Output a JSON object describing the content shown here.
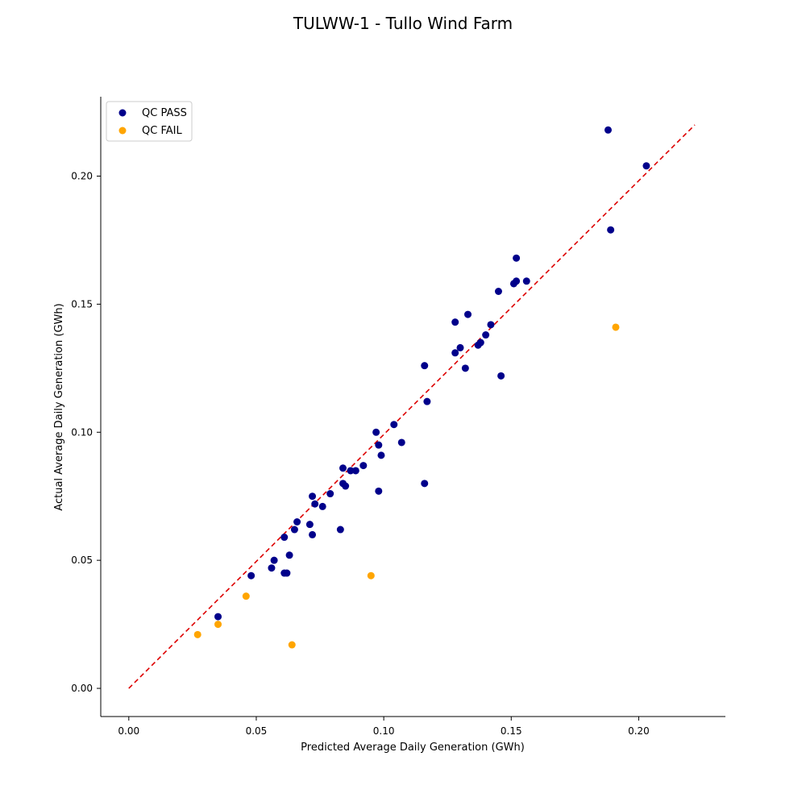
{
  "chart_data": {
    "type": "scatter",
    "title": "TULWW-1 - Tullo Wind Farm",
    "xlabel": "Predicted Average Daily Generation (GWh)",
    "ylabel": "Actual Average Daily Generation (GWh)",
    "xlim": [
      -0.011,
      0.234
    ],
    "ylim": [
      -0.011,
      0.231
    ],
    "xticks": [
      "0.00",
      "0.05",
      "0.10",
      "0.15",
      "0.20"
    ],
    "yticks": [
      "0.00",
      "0.05",
      "0.10",
      "0.15",
      "0.20"
    ],
    "grid": false,
    "legend_position": "top-left",
    "reference_line": {
      "x": [
        0.0,
        0.222
      ],
      "y": [
        0.0,
        0.22
      ],
      "color": "#dd0000",
      "style": "dashed"
    },
    "series": [
      {
        "name": "QC PASS",
        "color": "#00008b",
        "points": [
          [
            0.035,
            0.028
          ],
          [
            0.048,
            0.044
          ],
          [
            0.056,
            0.047
          ],
          [
            0.057,
            0.05
          ],
          [
            0.061,
            0.045
          ],
          [
            0.062,
            0.045
          ],
          [
            0.061,
            0.059
          ],
          [
            0.063,
            0.052
          ],
          [
            0.065,
            0.062
          ],
          [
            0.066,
            0.065
          ],
          [
            0.071,
            0.064
          ],
          [
            0.072,
            0.06
          ],
          [
            0.072,
            0.075
          ],
          [
            0.073,
            0.072
          ],
          [
            0.076,
            0.071
          ],
          [
            0.079,
            0.076
          ],
          [
            0.083,
            0.062
          ],
          [
            0.084,
            0.08
          ],
          [
            0.085,
            0.079
          ],
          [
            0.084,
            0.086
          ],
          [
            0.087,
            0.085
          ],
          [
            0.089,
            0.085
          ],
          [
            0.092,
            0.087
          ],
          [
            0.097,
            0.1
          ],
          [
            0.098,
            0.095
          ],
          [
            0.099,
            0.091
          ],
          [
            0.098,
            0.077
          ],
          [
            0.104,
            0.103
          ],
          [
            0.107,
            0.096
          ],
          [
            0.116,
            0.126
          ],
          [
            0.116,
            0.08
          ],
          [
            0.117,
            0.112
          ],
          [
            0.128,
            0.131
          ],
          [
            0.128,
            0.143
          ],
          [
            0.13,
            0.133
          ],
          [
            0.132,
            0.125
          ],
          [
            0.133,
            0.146
          ],
          [
            0.137,
            0.134
          ],
          [
            0.138,
            0.135
          ],
          [
            0.14,
            0.138
          ],
          [
            0.142,
            0.142
          ],
          [
            0.145,
            0.155
          ],
          [
            0.146,
            0.122
          ],
          [
            0.151,
            0.158
          ],
          [
            0.152,
            0.159
          ],
          [
            0.152,
            0.168
          ],
          [
            0.156,
            0.159
          ],
          [
            0.188,
            0.218
          ],
          [
            0.189,
            0.179
          ],
          [
            0.203,
            0.204
          ]
        ]
      },
      {
        "name": "QC FAIL",
        "color": "#ffa500",
        "points": [
          [
            0.027,
            0.021
          ],
          [
            0.035,
            0.025
          ],
          [
            0.046,
            0.036
          ],
          [
            0.064,
            0.017
          ],
          [
            0.095,
            0.044
          ],
          [
            0.191,
            0.141
          ]
        ]
      }
    ]
  }
}
